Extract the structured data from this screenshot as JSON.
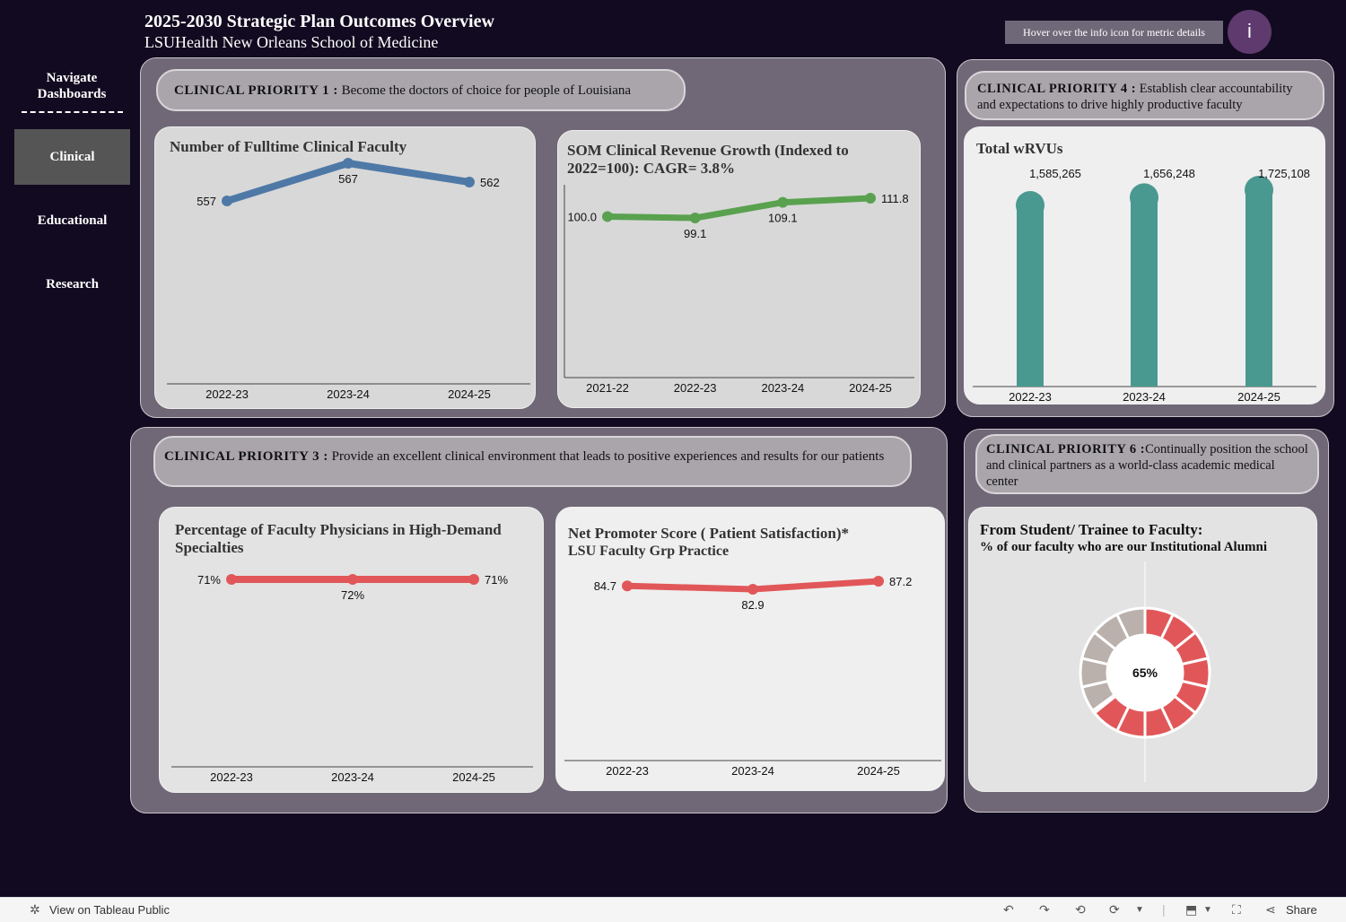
{
  "header": {
    "title": "2025-2030 Strategic Plan Outcomes Overview",
    "subtitle": "LSUHealth New Orleans School of Medicine",
    "hover_hint": "Hover over the info icon for metric details",
    "info_label": "i"
  },
  "nav": {
    "heading": "Navigate Dashboards",
    "items": [
      {
        "label": "Clinical",
        "active": true
      },
      {
        "label": "Educational",
        "active": false
      },
      {
        "label": "Research",
        "active": false
      }
    ]
  },
  "priorities": {
    "p1": {
      "label": "CLINICAL PRIORITY 1 :",
      "text": "Become the doctors of choice for people of Louisiana"
    },
    "p4": {
      "label": "CLINICAL PRIORITY 4 :",
      "text": "Establish clear accountability and expectations to drive highly productive faculty"
    },
    "p3": {
      "label": "CLINICAL PRIORITY 3 :",
      "text": "Provide an excellent clinical environment that leads to positive experiences and results for our patients"
    },
    "p6": {
      "label": "CLINICAL PRIORITY 6 :",
      "text": "Continually position the school and clinical partners as a world-class academic medical center"
    }
  },
  "cards": {
    "faculty": {
      "title": "Number of Fulltime Clinical Faculty"
    },
    "revenue": {
      "title": "SOM Clinical Revenue Growth (Indexed to 2022=100): CAGR= 3.8%"
    },
    "wrvu": {
      "title": "Total wRVUs"
    },
    "highdemand": {
      "title": "Percentage of Faculty Physicians in High-Demand Specialties"
    },
    "nps": {
      "title": "Net Promoter Score ( Patient Satisfaction)*",
      "subtitle": "LSU Faculty Grp Practice"
    },
    "alumni": {
      "title": "From Student/ Trainee to Faculty:",
      "subtitle": "% of our faculty who are our Institutional Alumni"
    }
  },
  "colors": {
    "blue": "#4e79a7",
    "green": "#59a14f",
    "teal": "#4a9990",
    "red": "#e15759",
    "gray": "#bab0ac"
  },
  "chart_data": [
    {
      "id": "faculty",
      "type": "line",
      "categories": [
        "2022-23",
        "2023-24",
        "2024-25"
      ],
      "values": [
        557,
        567,
        562
      ],
      "labels": [
        "557",
        "567",
        "562"
      ],
      "ylim": [
        0,
        600
      ]
    },
    {
      "id": "revenue",
      "type": "line",
      "categories": [
        "2021-22",
        "2022-23",
        "2023-24",
        "2024-25"
      ],
      "values": [
        100.0,
        99.1,
        109.1,
        111.8
      ],
      "labels": [
        "100.0",
        "99.1",
        "109.1",
        "111.8"
      ],
      "ylim": [
        0,
        120
      ]
    },
    {
      "id": "wrvu",
      "type": "bar",
      "categories": [
        "2022-23",
        "2023-24",
        "2024-25"
      ],
      "values": [
        1585265,
        1656248,
        1725108
      ],
      "labels": [
        "1,585,265",
        "1,656,248",
        "1,725,108"
      ],
      "ylim": [
        0,
        1800000
      ]
    },
    {
      "id": "highdemand",
      "type": "line",
      "categories": [
        "2022-23",
        "2023-24",
        "2024-25"
      ],
      "values": [
        71,
        72,
        71
      ],
      "labels": [
        "71%",
        "72%",
        "71%"
      ],
      "ylim": [
        0,
        80
      ]
    },
    {
      "id": "nps",
      "type": "line",
      "categories": [
        "2022-23",
        "2023-24",
        "2024-25"
      ],
      "values": [
        84.7,
        82.9,
        87.2
      ],
      "labels": [
        "84.7",
        "82.9",
        "87.2"
      ],
      "ylim": [
        0,
        100
      ]
    },
    {
      "id": "alumni",
      "type": "pie",
      "value": 65,
      "label": "65%",
      "segments": 14
    }
  ],
  "footer": {
    "view_label": "View on Tableau Public",
    "share_label": "Share"
  }
}
